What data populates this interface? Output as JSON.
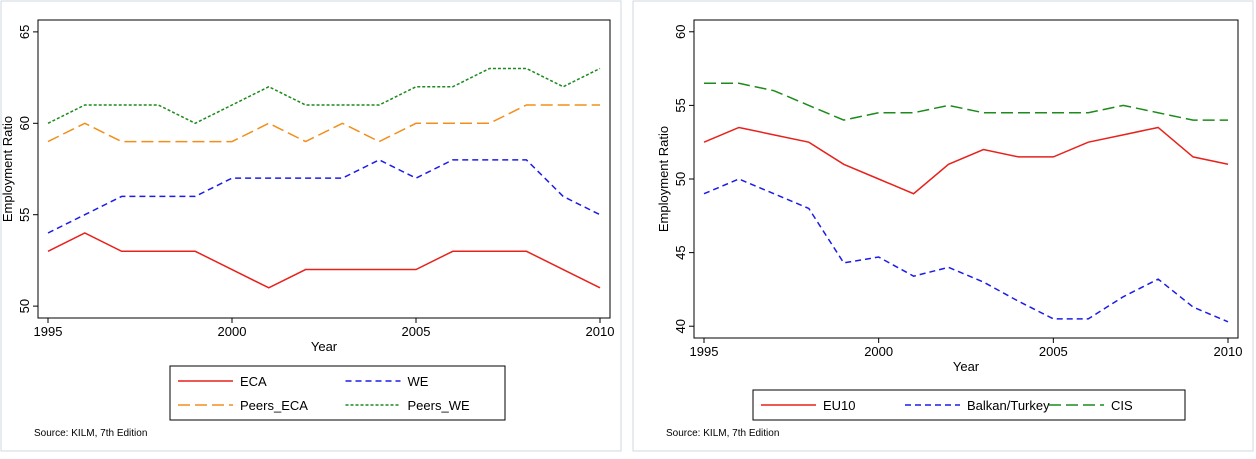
{
  "chart_data": [
    {
      "type": "line",
      "x_label": "Year",
      "y_label": "Employment Ratio",
      "note": "Source: KILM, 7th Edition",
      "x": [
        1995,
        1996,
        1997,
        1998,
        1999,
        2000,
        2001,
        2002,
        2003,
        2004,
        2005,
        2006,
        2007,
        2008,
        2009,
        2010
      ],
      "xlim": [
        1995,
        2010
      ],
      "xticks": [
        1995,
        2000,
        2005,
        2010
      ],
      "ylim": [
        49.35,
        65.65
      ],
      "yticks": [
        50,
        55,
        60,
        65
      ],
      "series": [
        {
          "name": "ECA",
          "color": "#e8211c",
          "dash": "solid",
          "values": [
            53,
            54,
            53,
            53,
            53,
            52,
            51,
            52,
            52,
            52,
            52,
            53,
            53,
            53,
            52,
            51
          ]
        },
        {
          "name": "WE",
          "color": "#1c1ce8",
          "dash": "dash",
          "values": [
            54,
            55,
            56,
            56,
            56,
            57,
            57,
            57,
            57,
            58,
            57,
            58,
            58,
            58,
            56,
            55
          ]
        },
        {
          "name": "Peers_ECA",
          "color": "#f28e1c",
          "dash": "longdash",
          "values": [
            59,
            60,
            59,
            59,
            59,
            59,
            60,
            59,
            60,
            59,
            60,
            60,
            60,
            61,
            61,
            61
          ]
        },
        {
          "name": "Peers_WE",
          "color": "#1c8a1c",
          "dash": "shortdash",
          "values": [
            60,
            61,
            61,
            61,
            60,
            61,
            62,
            61,
            61,
            61,
            62,
            62,
            63,
            63,
            62,
            63
          ]
        }
      ]
    },
    {
      "type": "line",
      "x_label": "Year",
      "y_label": "Employment Ratio",
      "note": "Source: KILM, 7th Edition",
      "x": [
        1995,
        1996,
        1997,
        1998,
        1999,
        2000,
        2001,
        2002,
        2003,
        2004,
        2005,
        2006,
        2007,
        2008,
        2009,
        2010
      ],
      "xlim": [
        1995,
        2010
      ],
      "xticks": [
        1995,
        2000,
        2005,
        2010
      ],
      "ylim": [
        39.2,
        60.8
      ],
      "yticks": [
        40,
        45,
        50,
        55,
        60
      ],
      "series": [
        {
          "name": "EU10",
          "color": "#e8211c",
          "dash": "solid",
          "values": [
            52.5,
            53.5,
            53,
            52.5,
            51,
            50,
            49,
            51,
            52,
            51.5,
            51.5,
            52.5,
            53,
            53.5,
            51.5,
            51
          ]
        },
        {
          "name": "Balkan/Turkey",
          "color": "#1c1ce8",
          "dash": "dash",
          "values": [
            49,
            50,
            49,
            48,
            44.3,
            44.7,
            43.4,
            44,
            43,
            41.7,
            40.5,
            40.5,
            42,
            43.2,
            41.3,
            40.3
          ]
        },
        {
          "name": "CIS",
          "color": "#1c8a1c",
          "dash": "longdash",
          "values": [
            56.5,
            56.5,
            56,
            55,
            54,
            54.5,
            54.5,
            55,
            54.5,
            54.5,
            54.5,
            54.5,
            55,
            54.5,
            54,
            54
          ]
        }
      ]
    }
  ]
}
